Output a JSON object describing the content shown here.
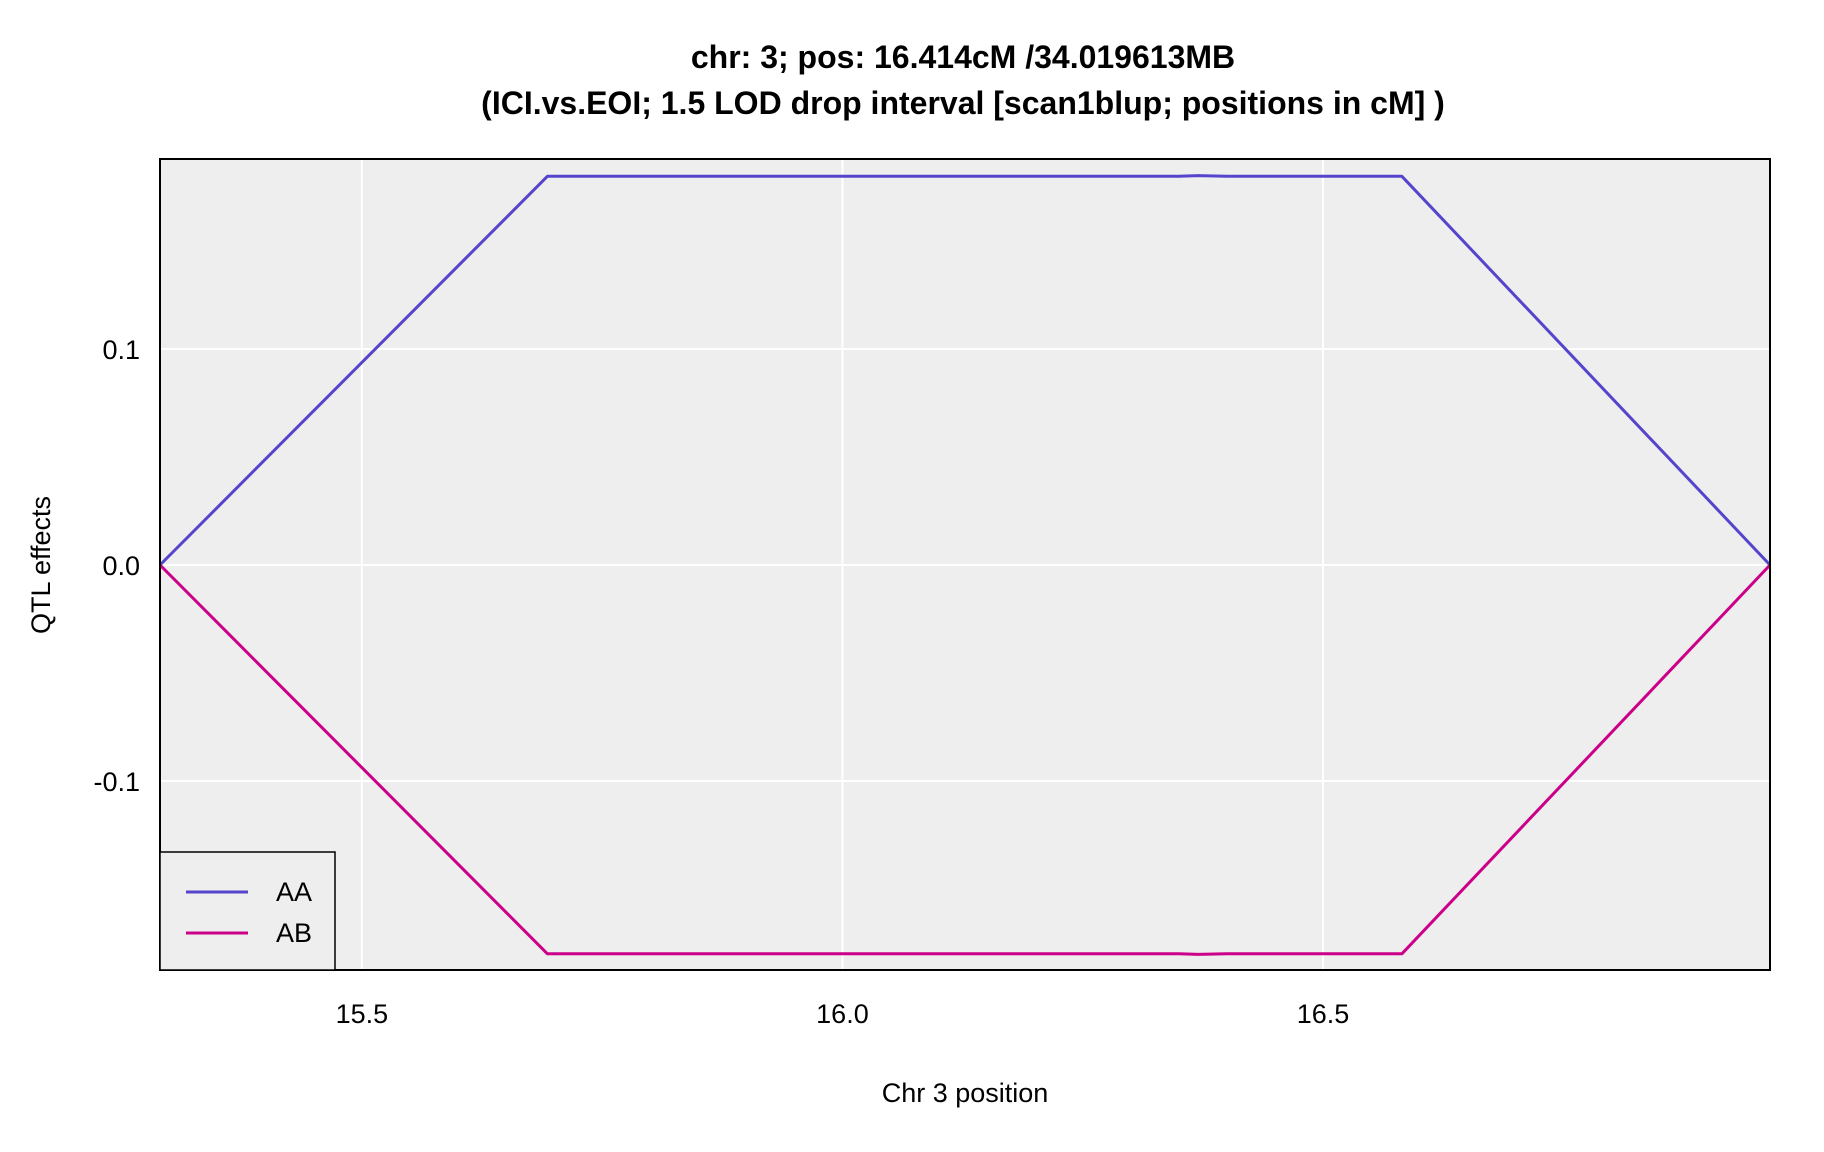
{
  "chart_data": {
    "type": "line",
    "title": "chr: 3; pos: 16.414cM /34.019613MB",
    "subtitle": "(ICI.vs.EOI; 1.5 LOD drop interval [scan1blup; positions in cM] )",
    "xlabel": "Chr 3 position",
    "ylabel": "QTL effects",
    "xlim": [
      15.29,
      16.965
    ],
    "ylim": [
      -0.1875,
      0.188
    ],
    "xticks": [
      15.5,
      16.0,
      16.5
    ],
    "xtick_labels": [
      "15.5",
      "16.0",
      "16.5"
    ],
    "yticks": [
      -0.1,
      0.0,
      0.1
    ],
    "ytick_labels": [
      "-0.1",
      "0.0",
      "0.1"
    ],
    "grid": true,
    "background": "#eeeeee",
    "legend_position": "bottom-left",
    "series": [
      {
        "name": "AA",
        "color": "#5544cc",
        "points": [
          [
            15.29,
            0.0
          ],
          [
            15.693,
            0.18
          ],
          [
            16.35,
            0.18
          ],
          [
            16.37,
            0.1803
          ],
          [
            16.4,
            0.18
          ],
          [
            16.582,
            0.18
          ],
          [
            16.965,
            0.0
          ]
        ]
      },
      {
        "name": "AB",
        "color": "#cc0088",
        "points": [
          [
            15.29,
            0.0
          ],
          [
            15.693,
            -0.18
          ],
          [
            16.35,
            -0.18
          ],
          [
            16.37,
            -0.1803
          ],
          [
            16.4,
            -0.18
          ],
          [
            16.582,
            -0.18
          ],
          [
            16.965,
            0.0
          ]
        ]
      }
    ]
  }
}
